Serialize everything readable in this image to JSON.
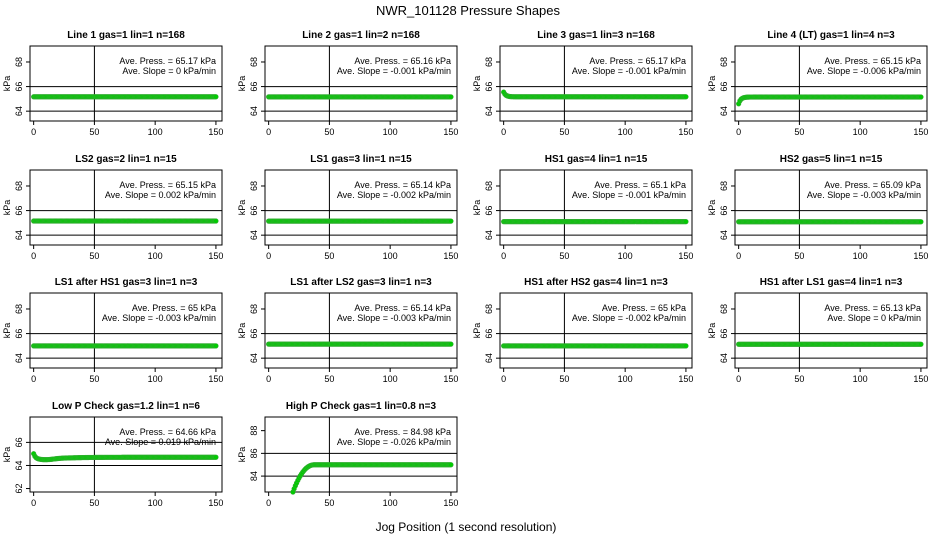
{
  "figure": {
    "title": "NWR_101128  Pressure Shapes",
    "xlabel": "Jog Position (1 second resolution)",
    "point_color": "#00cc00",
    "point_edge_color": "#33aa33"
  },
  "chart_data": [
    {
      "type": "scatter",
      "title": "Line 1 gas=1 lin=1 n=168",
      "ylabel": "kPa",
      "xlim": [
        -3,
        155
      ],
      "ylim": [
        63.2,
        69.3
      ],
      "yticks": [
        64,
        66,
        68
      ],
      "xticks": [
        0,
        50,
        100,
        150
      ],
      "hlines": [
        64.0,
        66.0
      ],
      "vline": 50,
      "ave_press": "65.17",
      "ave_slope": "0",
      "series": [
        {
          "kind": "flat",
          "x_start": 0,
          "x_end": 150,
          "y": 65.17
        }
      ]
    },
    {
      "type": "scatter",
      "title": "Line 2 gas=1 lin=2 n=168",
      "ylabel": "kPa",
      "xlim": [
        -3,
        155
      ],
      "ylim": [
        63.2,
        69.3
      ],
      "yticks": [
        64,
        66,
        68
      ],
      "xticks": [
        0,
        50,
        100,
        150
      ],
      "hlines": [
        64.0,
        66.0
      ],
      "vline": 50,
      "ave_press": "65.16",
      "ave_slope": "-0.001",
      "series": [
        {
          "kind": "flat",
          "x_start": 0,
          "x_end": 150,
          "y": 65.16
        }
      ]
    },
    {
      "type": "scatter",
      "title": "Line 3 gas=1 lin=3 n=168",
      "ylabel": "kPa",
      "xlim": [
        -3,
        155
      ],
      "ylim": [
        63.2,
        69.3
      ],
      "yticks": [
        64,
        66,
        68
      ],
      "xticks": [
        0,
        50,
        100,
        150
      ],
      "hlines": [
        64.0,
        66.0
      ],
      "vline": 50,
      "ave_press": "65.17",
      "ave_slope": "-0.001",
      "series": [
        {
          "kind": "startbump",
          "x_start": 0,
          "x_end": 150,
          "y": 65.17,
          "y0": 65.55
        }
      ]
    },
    {
      "type": "scatter",
      "title": "Line 4 (LT) gas=1 lin=4 n=3",
      "ylabel": "kPa",
      "xlim": [
        -3,
        155
      ],
      "ylim": [
        63.2,
        69.3
      ],
      "yticks": [
        64,
        66,
        68
      ],
      "xticks": [
        0,
        50,
        100,
        150
      ],
      "hlines": [
        64.0,
        66.0
      ],
      "vline": 50,
      "ave_press": "65.15",
      "ave_slope": "-0.006",
      "series": [
        {
          "kind": "startbump",
          "x_start": 0,
          "x_end": 150,
          "y": 65.15,
          "y0": 64.6
        }
      ]
    },
    {
      "type": "scatter",
      "title": "LS2 gas=2 lin=1 n=15",
      "ylabel": "kPa",
      "xlim": [
        -3,
        155
      ],
      "ylim": [
        63.2,
        69.3
      ],
      "yticks": [
        64,
        66,
        68
      ],
      "xticks": [
        0,
        50,
        100,
        150
      ],
      "hlines": [
        64.0,
        66.0
      ],
      "vline": 50,
      "ave_press": "65.15",
      "ave_slope": "0.002",
      "series": [
        {
          "kind": "flat",
          "x_start": 0,
          "x_end": 150,
          "y": 65.15
        }
      ]
    },
    {
      "type": "scatter",
      "title": "LS1 gas=3 lin=1 n=15",
      "ylabel": "kPa",
      "xlim": [
        -3,
        155
      ],
      "ylim": [
        63.2,
        69.3
      ],
      "yticks": [
        64,
        66,
        68
      ],
      "xticks": [
        0,
        50,
        100,
        150
      ],
      "hlines": [
        64.0,
        66.0
      ],
      "vline": 50,
      "ave_press": "65.14",
      "ave_slope": "-0.002",
      "series": [
        {
          "kind": "flat",
          "x_start": 0,
          "x_end": 150,
          "y": 65.14
        }
      ]
    },
    {
      "type": "scatter",
      "title": "HS1 gas=4 lin=1 n=15",
      "ylabel": "kPa",
      "xlim": [
        -3,
        155
      ],
      "ylim": [
        63.2,
        69.3
      ],
      "yticks": [
        64,
        66,
        68
      ],
      "xticks": [
        0,
        50,
        100,
        150
      ],
      "hlines": [
        64.0,
        66.0
      ],
      "vline": 50,
      "ave_press": "65.1",
      "ave_slope": "-0.001",
      "series": [
        {
          "kind": "flat",
          "x_start": 0,
          "x_end": 150,
          "y": 65.1
        }
      ]
    },
    {
      "type": "scatter",
      "title": "HS2 gas=5 lin=1 n=15",
      "ylabel": "kPa",
      "xlim": [
        -3,
        155
      ],
      "ylim": [
        63.2,
        69.3
      ],
      "yticks": [
        64,
        66,
        68
      ],
      "xticks": [
        0,
        50,
        100,
        150
      ],
      "hlines": [
        64.0,
        66.0
      ],
      "vline": 50,
      "ave_press": "65.09",
      "ave_slope": "-0.003",
      "series": [
        {
          "kind": "flat",
          "x_start": 0,
          "x_end": 150,
          "y": 65.09
        }
      ]
    },
    {
      "type": "scatter",
      "title": "LS1 after HS1 gas=3 lin=1 n=3",
      "ylabel": "kPa",
      "xlim": [
        -3,
        155
      ],
      "ylim": [
        63.2,
        69.3
      ],
      "yticks": [
        64,
        66,
        68
      ],
      "xticks": [
        0,
        50,
        100,
        150
      ],
      "hlines": [
        64.0,
        66.0
      ],
      "vline": 50,
      "ave_press": "65",
      "ave_slope": "-0.003",
      "series": [
        {
          "kind": "flat",
          "x_start": 0,
          "x_end": 150,
          "y": 65.0
        }
      ]
    },
    {
      "type": "scatter",
      "title": "LS1 after LS2 gas=3 lin=1 n=3",
      "ylabel": "kPa",
      "xlim": [
        -3,
        155
      ],
      "ylim": [
        63.2,
        69.3
      ],
      "yticks": [
        64,
        66,
        68
      ],
      "xticks": [
        0,
        50,
        100,
        150
      ],
      "hlines": [
        64.0,
        66.0
      ],
      "vline": 50,
      "ave_press": "65.14",
      "ave_slope": "-0.003",
      "series": [
        {
          "kind": "flat",
          "x_start": 0,
          "x_end": 150,
          "y": 65.14
        }
      ]
    },
    {
      "type": "scatter",
      "title": "HS1 after HS2 gas=4 lin=1 n=3",
      "ylabel": "kPa",
      "xlim": [
        -3,
        155
      ],
      "ylim": [
        63.2,
        69.3
      ],
      "yticks": [
        64,
        66,
        68
      ],
      "xticks": [
        0,
        50,
        100,
        150
      ],
      "hlines": [
        64.0,
        66.0
      ],
      "vline": 50,
      "ave_press": "65",
      "ave_slope": "-0.002",
      "series": [
        {
          "kind": "flat",
          "x_start": 0,
          "x_end": 150,
          "y": 65.0
        }
      ]
    },
    {
      "type": "scatter",
      "title": "HS1 after LS1 gas=4 lin=1 n=3",
      "ylabel": "kPa",
      "xlim": [
        -3,
        155
      ],
      "ylim": [
        63.2,
        69.3
      ],
      "yticks": [
        64,
        66,
        68
      ],
      "xticks": [
        0,
        50,
        100,
        150
      ],
      "hlines": [
        64.0,
        66.0
      ],
      "vline": 50,
      "ave_press": "65.13",
      "ave_slope": "0",
      "series": [
        {
          "kind": "flat",
          "x_start": 0,
          "x_end": 150,
          "y": 65.13
        }
      ]
    },
    {
      "type": "scatter",
      "title": "Low P Check gas=1.2 lin=1 n=6",
      "ylabel": "kPa",
      "xlim": [
        -3,
        155
      ],
      "ylim": [
        61.7,
        68.2
      ],
      "yticks": [
        62,
        64,
        66
      ],
      "xticks": [
        0,
        50,
        100,
        150
      ],
      "hlines": [
        64.0,
        66.0
      ],
      "vline": 50,
      "ave_press": "64.66",
      "ave_slope": "0.019",
      "series": [
        {
          "kind": "dip",
          "x_start": 0,
          "x_end": 150,
          "y": 64.66,
          "y0": 65.1
        }
      ]
    },
    {
      "type": "scatter",
      "title": "High P Check gas=1 lin=0.8 n=3",
      "ylabel": "kPa",
      "xlim": [
        -3,
        155
      ],
      "ylim": [
        82.6,
        89.2
      ],
      "yticks": [
        84,
        86,
        88
      ],
      "xticks": [
        0,
        50,
        100,
        150
      ],
      "hlines": [
        84.0,
        86.0
      ],
      "vline": 50,
      "ave_press": "84.98",
      "ave_slope": "-0.026",
      "series": [
        {
          "kind": "rise",
          "x_start": 20,
          "x_end": 150,
          "y": 85.0,
          "y0": 82.6,
          "x_rise_end": 38
        }
      ]
    }
  ]
}
